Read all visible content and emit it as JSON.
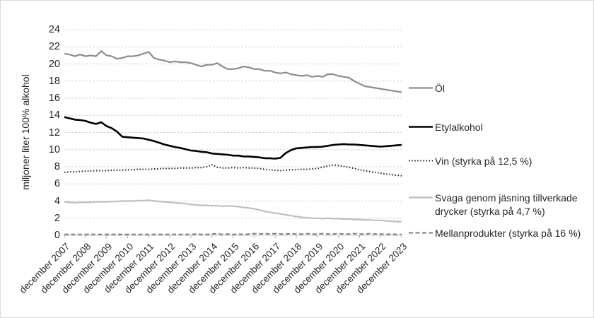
{
  "chart_data": {
    "type": "line",
    "title": "",
    "xlabel": "",
    "ylabel": "miljoner liter 100% alkohol",
    "ylim": [
      0,
      24
    ],
    "yticks": [
      0,
      2,
      4,
      6,
      8,
      10,
      12,
      14,
      16,
      18,
      20,
      22,
      24
    ],
    "grid": true,
    "legend_position": "right",
    "categories": [
      "december 2007",
      "december 2008",
      "december 2009",
      "december 2010",
      "december 2011",
      "december 2012",
      "december 2013",
      "december 2014",
      "december 2015",
      "december 2016",
      "december 2017",
      "december 2018",
      "december 2019",
      "december 2020",
      "december 2021",
      "december 2022",
      "december 2023"
    ],
    "sampling_note": "values sampled quarterly from december 2007 to december 2023",
    "series": [
      {
        "key": "ol",
        "name": "Öl",
        "color": "#8c8c8c",
        "dash": "solid",
        "width": 2.2,
        "values": [
          21.2,
          21.1,
          20.9,
          21.1,
          20.9,
          21.0,
          20.9,
          21.5,
          21.0,
          20.9,
          20.6,
          20.7,
          20.9,
          20.9,
          21.0,
          21.2,
          21.4,
          20.7,
          20.5,
          20.4,
          20.2,
          20.3,
          20.2,
          20.2,
          20.1,
          19.9,
          19.7,
          19.9,
          19.9,
          20.1,
          19.7,
          19.4,
          19.4,
          19.5,
          19.7,
          19.6,
          19.4,
          19.4,
          19.2,
          19.2,
          19.0,
          18.9,
          19.0,
          18.8,
          18.7,
          18.6,
          18.7,
          18.5,
          18.6,
          18.5,
          18.8,
          18.8,
          18.6,
          18.5,
          18.4,
          18.0,
          17.7,
          17.4,
          17.3,
          17.2,
          17.1,
          17.0,
          16.9,
          16.8,
          16.7
        ]
      },
      {
        "key": "etylalkohol",
        "name": "Etylalkohol",
        "color": "#000000",
        "dash": "solid",
        "width": 2.6,
        "values": [
          13.8,
          13.65,
          13.5,
          13.45,
          13.35,
          13.15,
          13.0,
          13.2,
          12.75,
          12.5,
          12.1,
          11.5,
          11.45,
          11.4,
          11.35,
          11.3,
          11.15,
          11.0,
          10.8,
          10.6,
          10.45,
          10.3,
          10.2,
          10.05,
          9.9,
          9.85,
          9.75,
          9.7,
          9.55,
          9.5,
          9.45,
          9.4,
          9.3,
          9.3,
          9.2,
          9.2,
          9.15,
          9.1,
          9.0,
          9.0,
          8.95,
          9.05,
          9.6,
          9.95,
          10.15,
          10.2,
          10.25,
          10.3,
          10.3,
          10.35,
          10.45,
          10.55,
          10.6,
          10.65,
          10.6,
          10.6,
          10.55,
          10.5,
          10.45,
          10.4,
          10.35,
          10.4,
          10.45,
          10.5,
          10.55
        ]
      },
      {
        "key": "vin",
        "name": "Vin (styrka på 12,5 %)",
        "color": "#1a1a1a",
        "dash": "dotted",
        "width": 2,
        "values": [
          7.35,
          7.4,
          7.4,
          7.45,
          7.5,
          7.5,
          7.55,
          7.55,
          7.55,
          7.6,
          7.6,
          7.6,
          7.65,
          7.65,
          7.7,
          7.7,
          7.7,
          7.75,
          7.75,
          7.8,
          7.8,
          7.8,
          7.85,
          7.85,
          7.85,
          7.9,
          7.9,
          8.0,
          8.25,
          7.95,
          7.85,
          7.85,
          7.9,
          7.85,
          7.9,
          7.85,
          7.85,
          7.8,
          7.7,
          7.65,
          7.6,
          7.55,
          7.6,
          7.65,
          7.65,
          7.7,
          7.7,
          7.75,
          7.8,
          7.95,
          8.1,
          8.2,
          8.15,
          8.05,
          7.95,
          7.8,
          7.65,
          7.55,
          7.45,
          7.35,
          7.25,
          7.15,
          7.1,
          7.0,
          6.95
        ]
      },
      {
        "key": "svaga-drycker",
        "name": "Svaga genom jäsning tillverkade drycker (styrka på 4,7 %)",
        "color": "#bfbfbf",
        "dash": "solid",
        "width": 2.2,
        "values": [
          3.9,
          3.85,
          3.8,
          3.85,
          3.85,
          3.85,
          3.9,
          3.9,
          3.9,
          3.95,
          3.95,
          4.0,
          4.0,
          4.0,
          4.05,
          4.05,
          4.1,
          4.0,
          3.95,
          3.9,
          3.85,
          3.8,
          3.75,
          3.7,
          3.6,
          3.55,
          3.5,
          3.5,
          3.45,
          3.45,
          3.4,
          3.45,
          3.4,
          3.35,
          3.25,
          3.2,
          3.1,
          2.95,
          2.8,
          2.7,
          2.6,
          2.5,
          2.4,
          2.3,
          2.2,
          2.1,
          2.05,
          2.0,
          2.0,
          1.95,
          2.0,
          1.95,
          1.95,
          1.9,
          1.9,
          1.85,
          1.85,
          1.8,
          1.8,
          1.75,
          1.75,
          1.7,
          1.65,
          1.6,
          1.6
        ]
      },
      {
        "key": "mellanprodukter",
        "name": "Mellanprodukter (styrka på 16 %)",
        "color": "#7f7f7f",
        "dash": "dashed",
        "width": 2,
        "values": [
          0.1,
          0.1,
          0.1,
          0.1,
          0.1,
          0.1,
          0.1,
          0.1,
          0.1,
          0.1,
          0.1,
          0.1,
          0.1,
          0.1,
          0.1,
          0.1,
          0.1,
          0.1,
          0.1,
          0.1,
          0.1,
          0.1,
          0.1,
          0.1,
          0.1,
          0.15,
          0.1,
          0.1,
          0.15,
          0.2,
          0.1,
          0.15,
          0.1,
          0.15,
          0.1,
          0.15,
          0.2,
          0.15,
          0.2,
          0.15,
          0.2,
          0.15,
          0.15,
          0.2,
          0.15,
          0.15,
          0.2,
          0.15,
          0.15,
          0.2,
          0.15,
          0.15,
          0.2,
          0.15,
          0.15,
          0.2,
          0.15,
          0.15,
          0.2,
          0.15,
          0.15,
          0.1,
          0.15,
          0.1,
          0.1
        ]
      }
    ],
    "colors": {
      "gridline": "#d6d6d6",
      "axis": "#c9c9c9",
      "tick": "#b0b0b0",
      "text": "#262626"
    }
  }
}
